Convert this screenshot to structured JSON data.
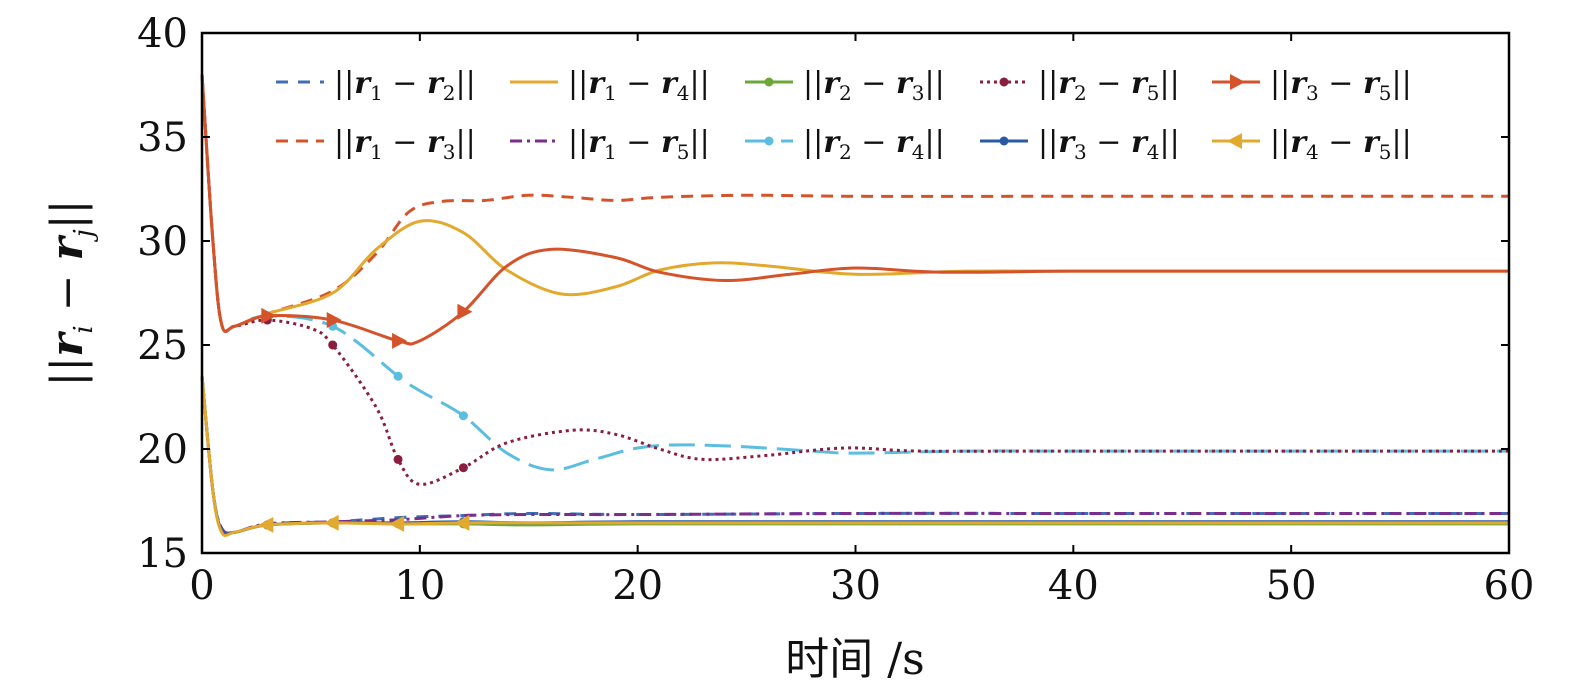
{
  "chart_data": {
    "type": "line",
    "xlabel": "时间 /s",
    "ylabel": "||r_i − r_j||",
    "xlim": [
      0,
      60
    ],
    "ylim": [
      15,
      40
    ],
    "xticks": [
      0,
      10,
      20,
      30,
      40,
      50,
      60
    ],
    "yticks": [
      15,
      20,
      25,
      30,
      35,
      40
    ],
    "grid": false,
    "legend_position": "top",
    "series": [
      {
        "name": "||r1 − r2||",
        "i": "1",
        "j": "2",
        "color": "#3d6fb6",
        "dash": "12,10",
        "marker": "none",
        "x": [
          0,
          0.5,
          0.9,
          1.5,
          3,
          6,
          9,
          12,
          15,
          20,
          30,
          40,
          50,
          60
        ],
        "y": [
          23.5,
          18,
          16.2,
          16.0,
          16.4,
          16.5,
          16.7,
          16.8,
          16.9,
          16.85,
          16.9,
          16.9,
          16.9,
          16.9
        ]
      },
      {
        "name": "||r1 − r3||",
        "i": "1",
        "j": "3",
        "color": "#d4532b",
        "dash": "12,8",
        "marker": "none",
        "x": [
          0,
          0.5,
          0.9,
          1.5,
          3,
          6,
          8,
          9.5,
          11,
          13,
          15,
          17,
          19,
          21,
          25,
          30,
          40,
          50,
          60
        ],
        "y": [
          38,
          30,
          26,
          25.9,
          26.5,
          27.6,
          29.4,
          31.4,
          31.9,
          31.95,
          32.2,
          32.1,
          31.95,
          32.1,
          32.2,
          32.15,
          32.15,
          32.15,
          32.15
        ]
      },
      {
        "name": "||r1 − r4||",
        "i": "1",
        "j": "4",
        "color": "#e3a92f",
        "dash": "",
        "marker": "none",
        "x": [
          0,
          0.5,
          0.9,
          1.5,
          3,
          6,
          8,
          10,
          12,
          14,
          16.5,
          19,
          21,
          23.5,
          26,
          30,
          35,
          40,
          50,
          60
        ],
        "y": [
          38,
          30,
          26,
          25.9,
          26.5,
          27.5,
          29.6,
          30.95,
          30.4,
          28.6,
          27.45,
          27.8,
          28.6,
          28.95,
          28.8,
          28.4,
          28.55,
          28.55,
          28.55,
          28.55
        ]
      },
      {
        "name": "||r1 − r5||",
        "i": "1",
        "j": "5",
        "color": "#7b2d8e",
        "dash": "12,5,3,5",
        "marker": "none",
        "x": [
          0,
          0.5,
          0.9,
          1.5,
          3,
          6,
          9,
          12,
          15,
          20,
          30,
          40,
          50,
          60
        ],
        "y": [
          23.5,
          18,
          16.2,
          16.0,
          16.4,
          16.5,
          16.6,
          16.8,
          16.85,
          16.85,
          16.9,
          16.9,
          16.9,
          16.9
        ]
      },
      {
        "name": "||r2 − r3||",
        "i": "2",
        "j": "3",
        "color": "#6ba83a",
        "dash": "",
        "marker": "circle",
        "x": [
          0,
          0.5,
          0.9,
          1.5,
          3,
          6,
          9,
          12,
          15,
          20,
          30,
          40,
          50,
          60
        ],
        "y": [
          23.5,
          18,
          16.1,
          16.0,
          16.35,
          16.45,
          16.4,
          16.4,
          16.35,
          16.4,
          16.4,
          16.4,
          16.4,
          16.4
        ]
      },
      {
        "name": "||r2 − r4||",
        "i": "2",
        "j": "4",
        "color": "#5bbde0",
        "dash": "26,10",
        "marker": "circle",
        "x": [
          0,
          0.5,
          0.9,
          1.5,
          3,
          6,
          9,
          10,
          12,
          14,
          16,
          18,
          20,
          22,
          25,
          28,
          30,
          35,
          40,
          50,
          60
        ],
        "y": [
          38,
          30,
          26,
          25.9,
          26.4,
          25.9,
          23.5,
          22.8,
          21.6,
          19.8,
          19.0,
          19.5,
          20.05,
          20.2,
          20.1,
          19.9,
          19.8,
          19.9,
          19.9,
          19.9,
          19.9
        ]
      },
      {
        "name": "||r3 − r4||",
        "i": "3",
        "j": "4",
        "color": "#2a5aa6",
        "dash": "",
        "marker": "circle",
        "x": [
          0,
          0.5,
          0.9,
          1.5,
          3,
          6,
          9,
          12,
          15,
          20,
          30,
          40,
          50,
          60
        ],
        "y": [
          23.5,
          18,
          16.1,
          16.0,
          16.35,
          16.45,
          16.45,
          16.5,
          16.45,
          16.5,
          16.5,
          16.5,
          16.5,
          16.5
        ]
      },
      {
        "name": "||r2 − r5||",
        "i": "2",
        "j": "5",
        "color": "#8b1e3f",
        "dash": "3,4",
        "marker": "circle",
        "x": [
          0,
          0.5,
          0.9,
          1.5,
          3,
          5,
          6,
          8,
          9,
          10,
          12,
          14,
          17,
          19,
          21,
          23,
          26,
          29.5,
          33,
          40,
          50,
          60
        ],
        "y": [
          38,
          30,
          26,
          25.9,
          26.2,
          25.8,
          25.0,
          22.0,
          19.5,
          18.3,
          19.1,
          20.3,
          20.9,
          20.7,
          20.0,
          19.5,
          19.7,
          20.05,
          19.9,
          19.9,
          19.9,
          19.9
        ]
      },
      {
        "name": "||r3 − r5||",
        "i": "3",
        "j": "5",
        "color": "#d4532b",
        "dash": "",
        "marker": "triangle-right",
        "x": [
          0,
          0.5,
          0.9,
          1.5,
          3,
          6,
          9,
          10,
          12,
          14,
          16,
          19,
          21,
          24,
          27,
          30,
          34,
          40,
          50,
          60
        ],
        "y": [
          38,
          30,
          26,
          25.9,
          26.4,
          26.2,
          25.2,
          25.2,
          26.6,
          28.8,
          29.6,
          29.2,
          28.5,
          28.1,
          28.4,
          28.7,
          28.5,
          28.55,
          28.55,
          28.55
        ]
      },
      {
        "name": "||r4 − r5||",
        "i": "4",
        "j": "5",
        "color": "#e3a92f",
        "dash": "",
        "marker": "triangle-left",
        "x": [
          0,
          0.5,
          0.9,
          1.5,
          3,
          6,
          9,
          12,
          15,
          20,
          30,
          40,
          50,
          60
        ],
        "y": [
          23.5,
          18,
          16.0,
          16.0,
          16.35,
          16.45,
          16.4,
          16.45,
          16.45,
          16.45,
          16.45,
          16.45,
          16.45,
          16.45
        ]
      }
    ],
    "legend_order": [
      0,
      2,
      4,
      7,
      8,
      1,
      3,
      5,
      6,
      9
    ]
  }
}
